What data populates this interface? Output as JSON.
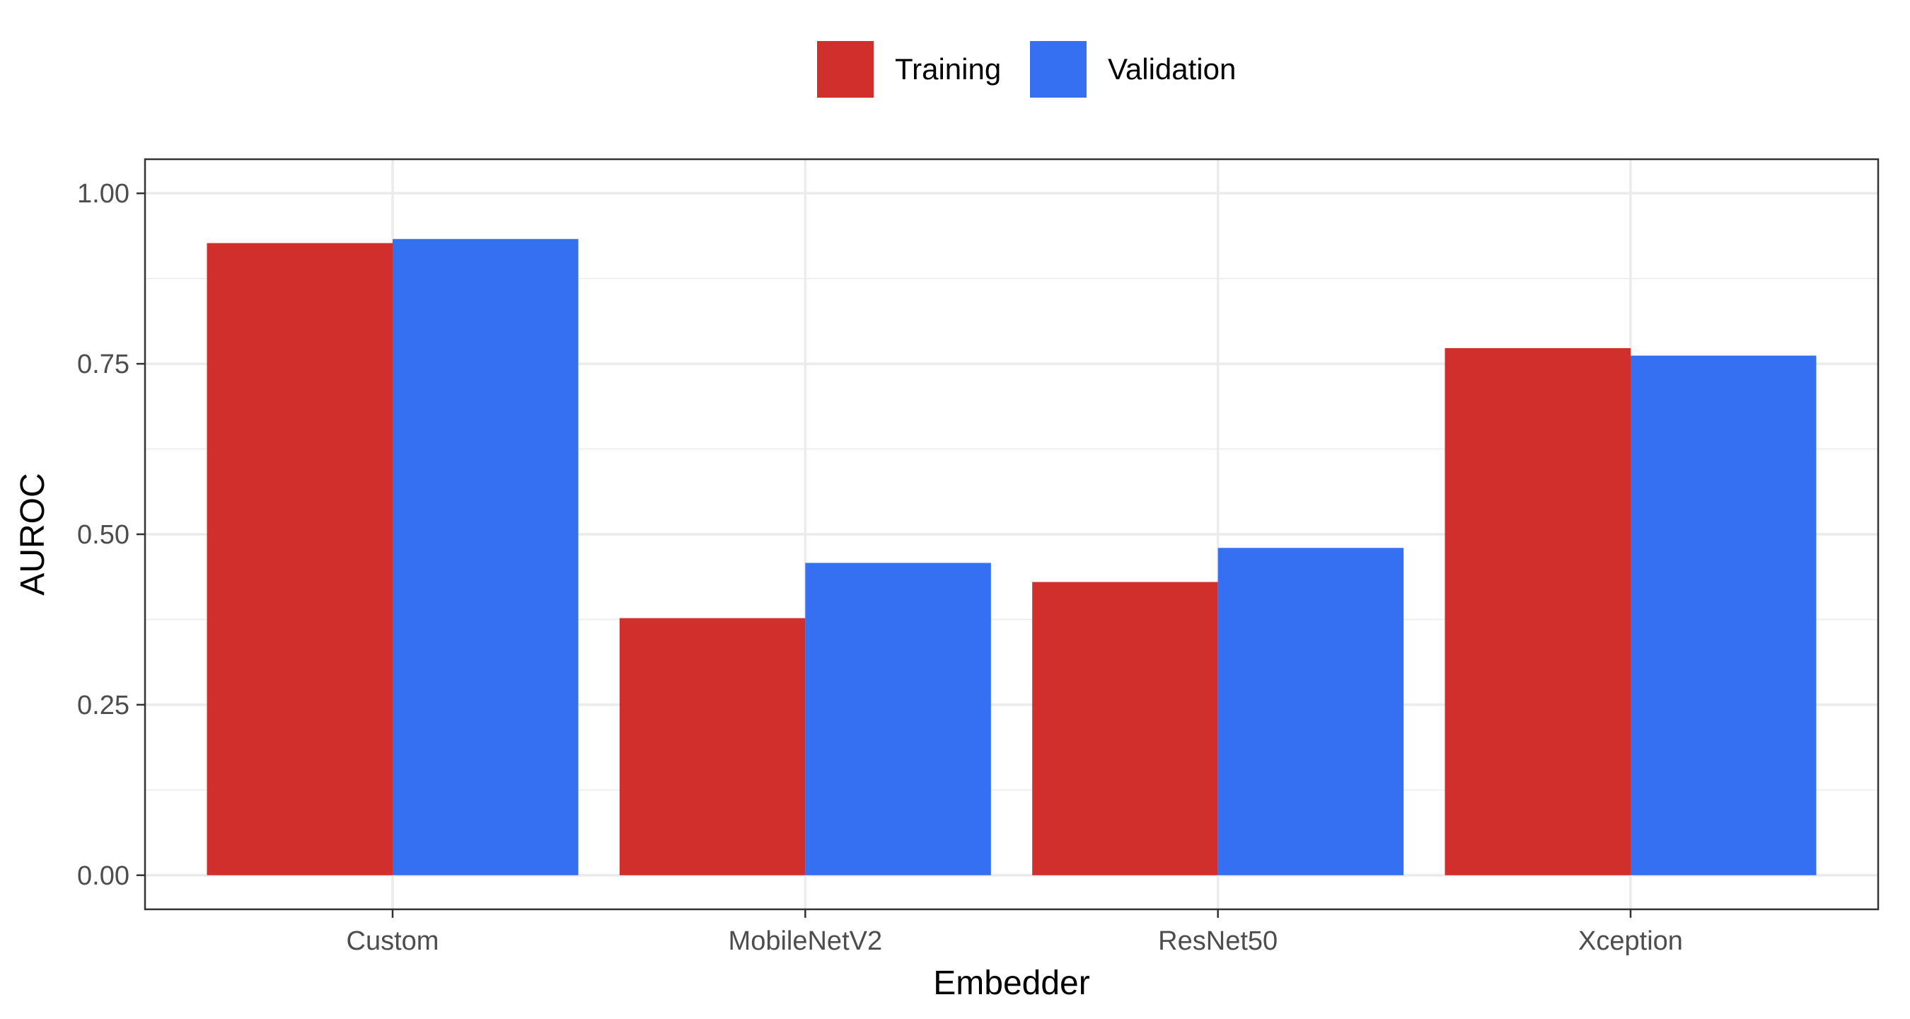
{
  "chart_data": {
    "type": "bar",
    "categories": [
      "Custom",
      "MobileNetV2",
      "ResNet50",
      "Xception"
    ],
    "series": [
      {
        "name": "Training",
        "color": "#D12F2C",
        "values": [
          0.927,
          0.377,
          0.43,
          0.773
        ]
      },
      {
        "name": "Validation",
        "color": "#3670F2",
        "values": [
          0.933,
          0.458,
          0.48,
          0.762
        ]
      }
    ],
    "xlabel": "Embedder",
    "ylabel": "AUROC",
    "ylim": [
      -0.05,
      1.05
    ],
    "yticks": [
      0.0,
      0.25,
      0.5,
      0.75,
      1.0
    ],
    "ytick_labels": [
      "0.00",
      "0.25",
      "0.50",
      "0.75",
      "1.00"
    ],
    "grid": true,
    "legend_position": "top"
  }
}
